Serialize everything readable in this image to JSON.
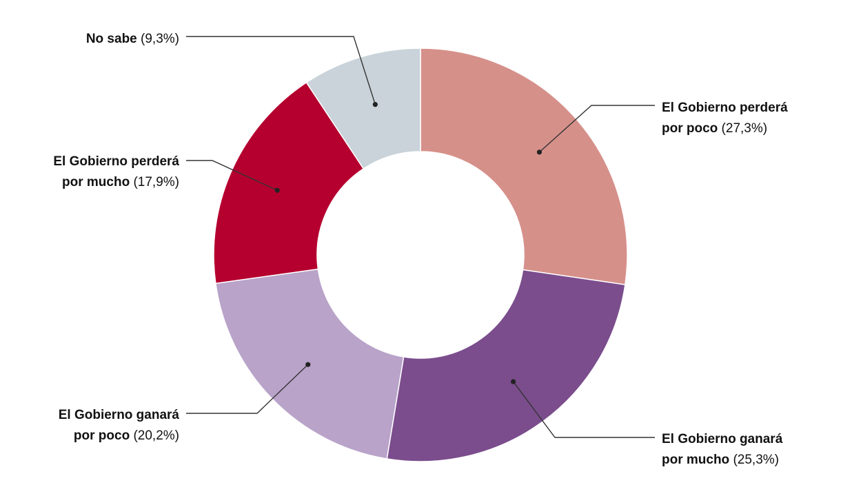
{
  "chart_data": {
    "type": "pie",
    "donut": true,
    "title": "",
    "slices": [
      {
        "label_lines": [
          "El Gobierno perderá",
          "por poco"
        ],
        "pct_text": "(27,3%)",
        "value": 27.3,
        "color": "#d6908a"
      },
      {
        "label_lines": [
          "El Gobierno ganará",
          "por mucho"
        ],
        "pct_text": "(25,3%)",
        "value": 25.3,
        "color": "#7b4d8d"
      },
      {
        "label_lines": [
          "El Gobierno ganará",
          "por poco"
        ],
        "pct_text": "(20,2%)",
        "value": 20.2,
        "color": "#b9a3c9"
      },
      {
        "label_lines": [
          "El Gobierno perderá",
          "por mucho"
        ],
        "pct_text": "(17,9%)",
        "value": 17.9,
        "color": "#b5002f"
      },
      {
        "label_lines": [
          "No sabe"
        ],
        "pct_text": "(9,3%)",
        "value": 9.3,
        "color": "#c9d3d9"
      }
    ]
  }
}
